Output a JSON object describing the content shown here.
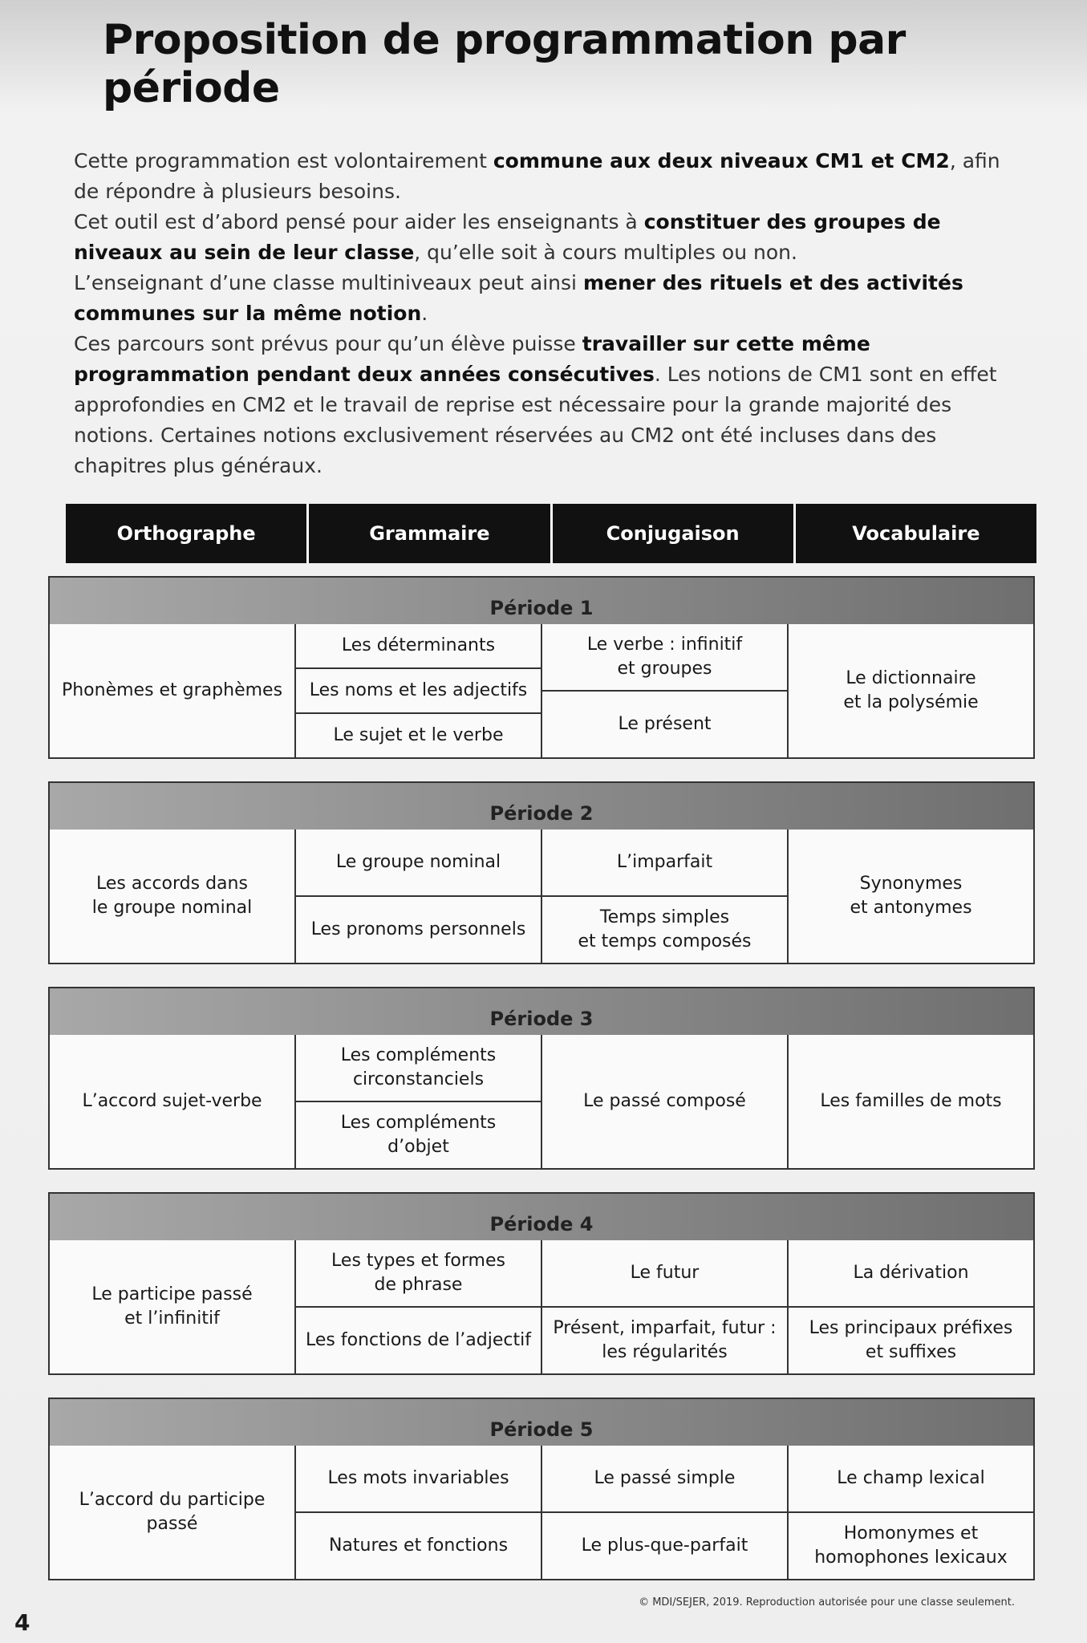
{
  "title": "Proposition de programmation par période",
  "intro": [
    [
      {
        "text": "Cette programmation est volontairement "
      },
      {
        "text": "commune aux deux niveaux CM1 et CM2",
        "bold": true
      },
      {
        "text": ", afin de répondre à plusieurs besoins."
      }
    ],
    [
      {
        "text": "Cet outil est d’abord pensé pour aider les enseignants à "
      },
      {
        "text": "constituer des groupes de niveaux au sein de leur classe",
        "bold": true
      },
      {
        "text": ", qu’elle soit à cours multiples ou non."
      }
    ],
    [
      {
        "text": "L’enseignant d’une classe multiniveaux peut ainsi "
      },
      {
        "text": "mener des rituels et des activités communes sur la même notion",
        "bold": true
      },
      {
        "text": "."
      }
    ],
    [
      {
        "text": "Ces parcours sont prévus pour qu’un élève puisse "
      },
      {
        "text": "travailler sur cette même programmation pendant deux années consécutives",
        "bold": true
      },
      {
        "text": ". Les notions de CM1 sont en effet approfondies en CM2 et le travail de reprise est nécessaire pour la grande majorité des notions. Certaines notions exclusivement réservées au CM2 ont été incluses dans des chapitres plus généraux."
      }
    ]
  ],
  "table": {
    "headers": [
      "Orthographe",
      "Grammaire",
      "Conjugaison",
      "Vocabulaire"
    ],
    "periods": [
      {
        "title": "Période 1",
        "columns": [
          [
            "Phonèmes et graphèmes"
          ],
          [
            "Les déterminants",
            "Les noms et les adjectifs",
            "Le sujet et le verbe"
          ],
          [
            "Le verbe : infinitif\net groupes",
            "Le présent"
          ],
          [
            "Le dictionnaire\net la polysémie"
          ]
        ]
      },
      {
        "title": "Période 2",
        "columns": [
          [
            "Les accords dans\nle groupe nominal"
          ],
          [
            "Le groupe nominal",
            "Les pronoms personnels"
          ],
          [
            "L’imparfait",
            "Temps simples\net temps composés"
          ],
          [
            "Synonymes\net antonymes"
          ]
        ]
      },
      {
        "title": "Période 3",
        "columns": [
          [
            "L’accord sujet-verbe"
          ],
          [
            "Les compléments\ncirconstanciels",
            "Les compléments\nd’objet"
          ],
          [
            "Le passé composé"
          ],
          [
            "Les familles de mots"
          ]
        ]
      },
      {
        "title": "Période 4",
        "columns": [
          [
            "Le participe passé\net l’infinitif"
          ],
          [
            "Les types et formes\nde phrase",
            "Les fonctions de l’adjectif"
          ],
          [
            "Le futur",
            "Présent, imparfait, futur :\nles régularités"
          ],
          [
            "La dérivation",
            "Les principaux préfixes\net suffixes"
          ]
        ]
      },
      {
        "title": "Période 5",
        "columns": [
          [
            "L’accord du participe\npassé"
          ],
          [
            "Les mots invariables",
            "Natures et fonctions"
          ],
          [
            "Le passé simple",
            "Le plus-que-parfait"
          ],
          [
            "Le champ lexical",
            "Homonymes et\nhomophones lexicaux"
          ]
        ]
      }
    ]
  },
  "footer": {
    "copyright": "© MDI/SEJER, 2019. Reproduction autorisée pour une classe seulement.",
    "page": "4"
  }
}
